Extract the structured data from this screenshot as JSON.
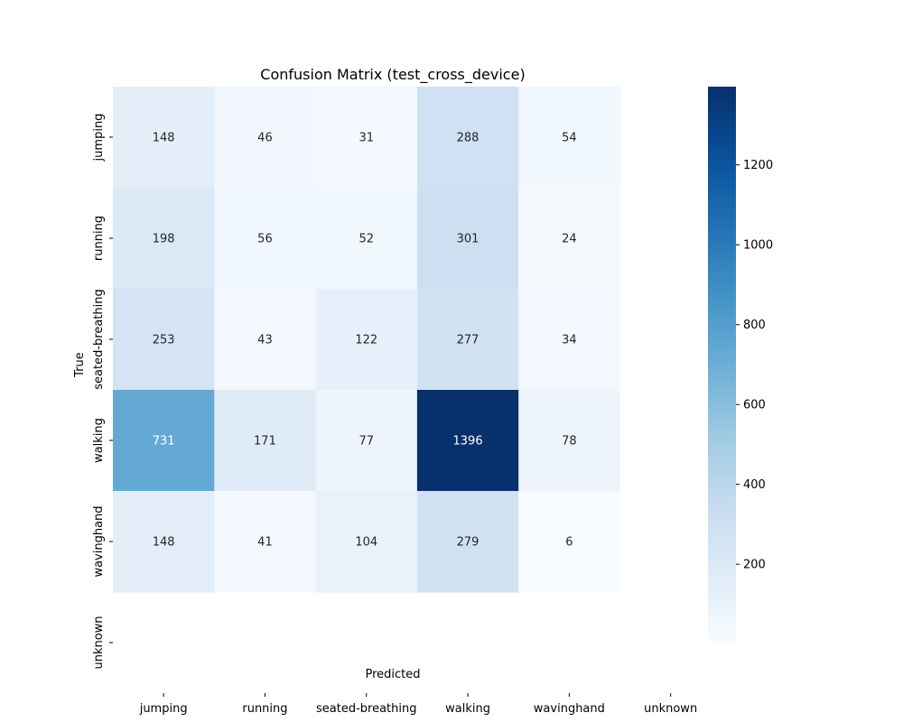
{
  "chart_data": {
    "type": "heatmap",
    "title": "Confusion Matrix (test_cross_device)",
    "xlabel": "Predicted",
    "ylabel": "True",
    "x_categories": [
      "jumping",
      "running",
      "seated-breathing",
      "walking",
      "wavinghand",
      "unknown"
    ],
    "y_categories": [
      "jumping",
      "running",
      "seated-breathing",
      "walking",
      "wavinghand",
      "unknown"
    ],
    "matrix": [
      [
        148,
        46,
        31,
        288,
        54,
        null
      ],
      [
        198,
        56,
        52,
        301,
        24,
        null
      ],
      [
        253,
        43,
        122,
        277,
        34,
        null
      ],
      [
        731,
        171,
        77,
        1396,
        78,
        null
      ],
      [
        148,
        41,
        104,
        279,
        6,
        null
      ],
      [
        null,
        null,
        null,
        null,
        null,
        null
      ]
    ],
    "colormap": "Blues",
    "color_min": 6,
    "color_max": 1396,
    "colorbar_ticks": [
      200,
      400,
      600,
      800,
      1000,
      1200
    ],
    "colorbar_tick_labels": [
      "200",
      "400",
      "600",
      "800",
      "1000",
      "1200"
    ]
  }
}
